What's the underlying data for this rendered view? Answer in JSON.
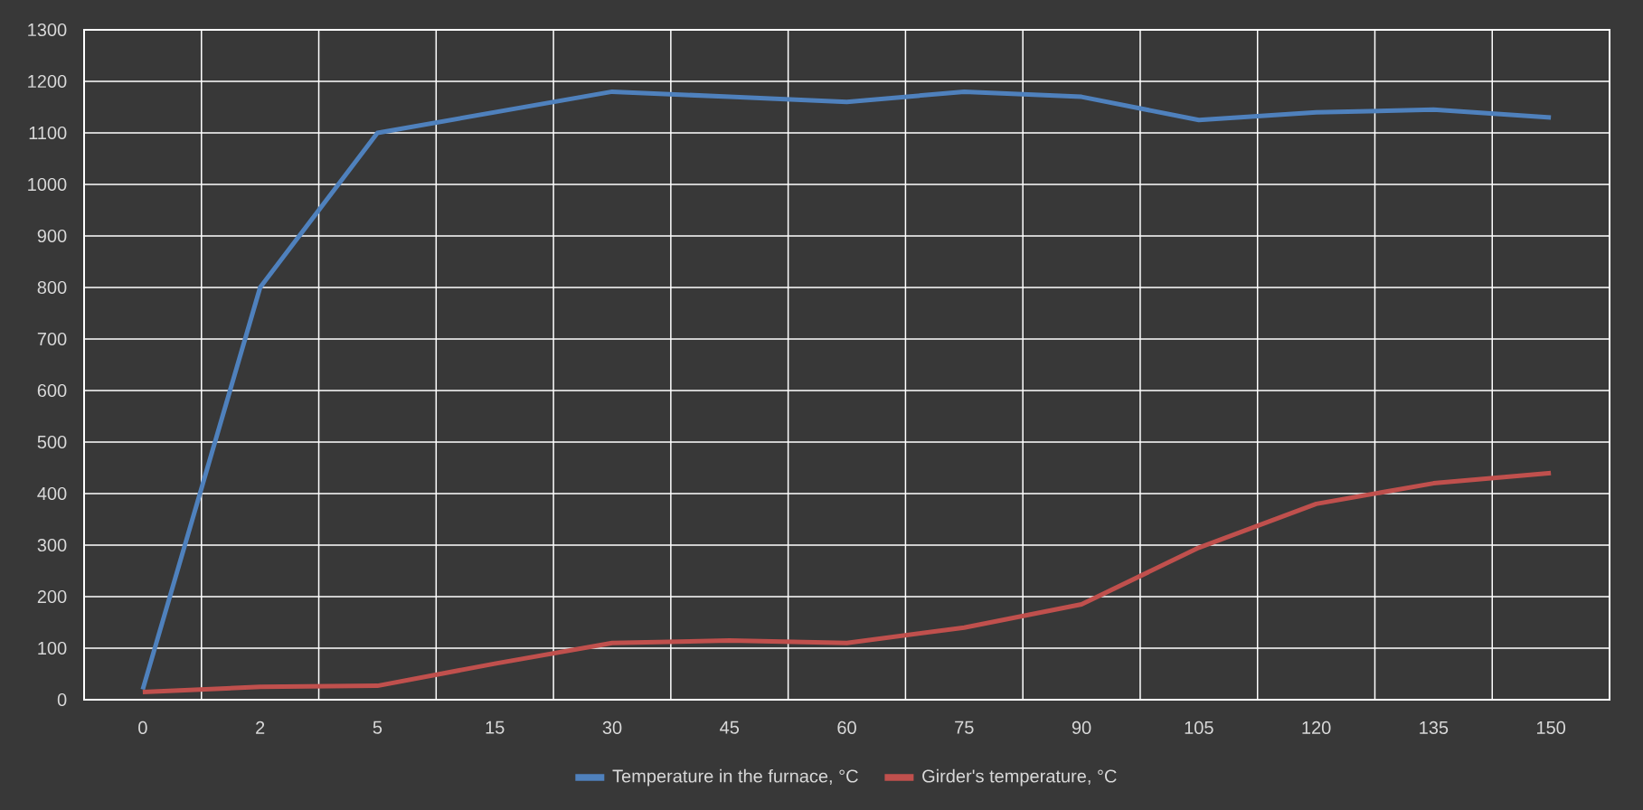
{
  "chart_data": {
    "type": "line",
    "categories": [
      "0",
      "2",
      "5",
      "15",
      "30",
      "45",
      "60",
      "75",
      "90",
      "105",
      "120",
      "135",
      "150"
    ],
    "series": [
      {
        "name": "Temperature in the furnace, °C",
        "color": "#4f81bd",
        "values": [
          20,
          800,
          1100,
          1140,
          1180,
          1170,
          1160,
          1180,
          1170,
          1125,
          1140,
          1145,
          1130
        ]
      },
      {
        "name": "Girder's temperature, °C",
        "color": "#c0504d",
        "values": [
          15,
          25,
          27,
          70,
          110,
          115,
          110,
          140,
          185,
          295,
          380,
          420,
          440
        ]
      }
    ],
    "ylim": [
      0,
      1300
    ],
    "yticks": [
      0,
      100,
      200,
      300,
      400,
      500,
      600,
      700,
      800,
      900,
      1000,
      1100,
      1200,
      1300
    ],
    "grid": true,
    "legend": "bottom"
  }
}
